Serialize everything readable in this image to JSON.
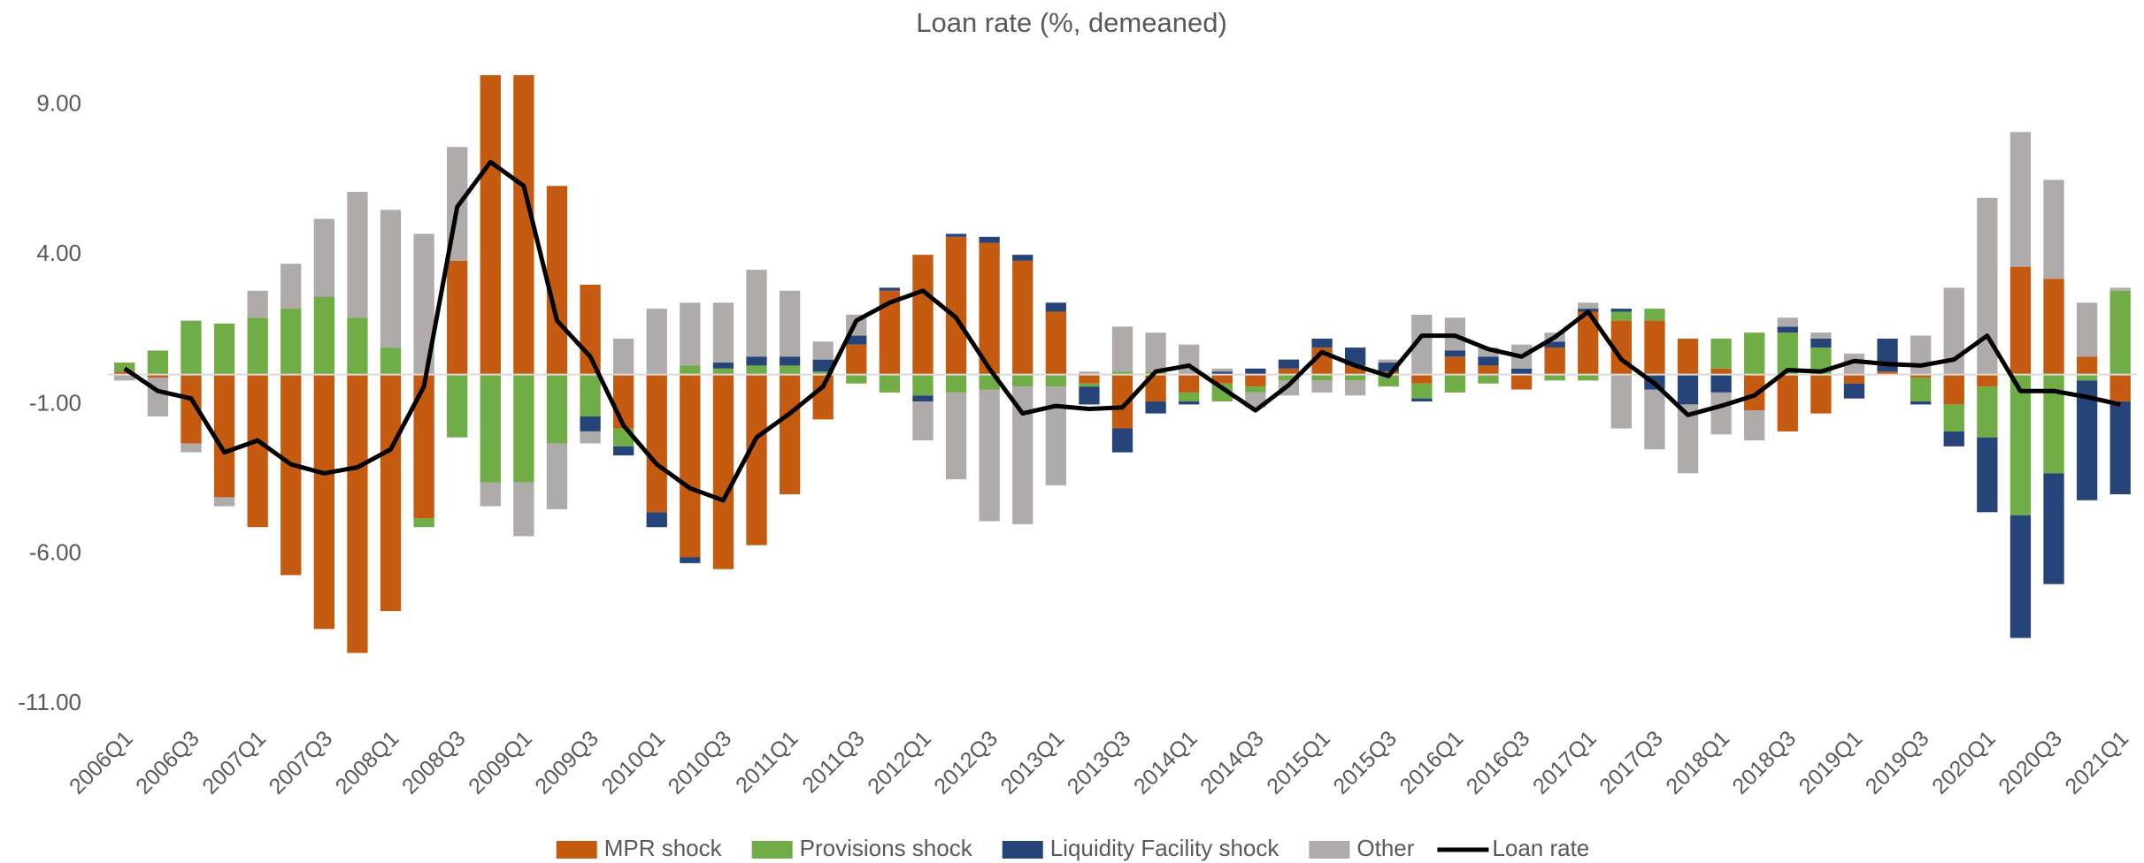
{
  "chart_data": {
    "type": "bar",
    "stacked": true,
    "title": "Loan rate (%, demeaned)",
    "categories": [
      "2006Q1",
      null,
      "2006Q3",
      null,
      "2007Q1",
      null,
      "2007Q3",
      null,
      "2008Q1",
      null,
      "2008Q3",
      null,
      "2009Q1",
      null,
      "2009Q3",
      null,
      "2010Q1",
      null,
      "2010Q3",
      null,
      "2011Q1",
      null,
      "2011Q3",
      null,
      "2012Q1",
      null,
      "2012Q3",
      null,
      "2013Q1",
      null,
      "2013Q3",
      null,
      "2014Q1",
      null,
      "2014Q3",
      null,
      "2015Q1",
      null,
      "2015Q3",
      null,
      "2016Q1",
      null,
      "2016Q3",
      null,
      "2017Q1",
      null,
      "2017Q3",
      null,
      "2018Q1",
      null,
      "2018Q3",
      null,
      "2019Q1",
      null,
      "2019Q3",
      null,
      "2020Q1",
      null,
      "2020Q3",
      null,
      "2021Q1"
    ],
    "series": [
      {
        "name": "MPR shock",
        "type": "bar",
        "color": "#c55a11",
        "values": [
          0.1,
          -0.1,
          -2.3,
          -4.1,
          -5.1,
          -6.7,
          -8.5,
          -9.3,
          -7.9,
          -4.8,
          3.8,
          10,
          10,
          6.3,
          3.0,
          -1.8,
          -4.6,
          -6.1,
          -6.5,
          -5.7,
          -4.0,
          -1.5,
          1.0,
          2.8,
          4.0,
          4.6,
          4.4,
          3.8,
          2.1,
          -0.3,
          -1.8,
          -0.9,
          -0.6,
          -0.3,
          -0.4,
          0.2,
          0.9,
          0.3,
          0.1,
          -0.3,
          0.6,
          0.3,
          -0.5,
          0.9,
          2.1,
          1.8,
          1.8,
          1.2,
          0.2,
          -1.2,
          -1.9,
          -1.3,
          -0.3,
          0.1,
          -0.1,
          -1.0,
          -0.4,
          3.6,
          3.2,
          0.6,
          -0.9
        ]
      },
      {
        "name": "Provisions shock",
        "type": "bar",
        "color": "#70ad47",
        "values": [
          0.3,
          0.8,
          1.8,
          1.7,
          1.9,
          2.2,
          2.6,
          1.9,
          0.9,
          -0.3,
          -2.1,
          -3.6,
          -3.6,
          -2.3,
          -1.4,
          -0.6,
          0,
          0.3,
          0.2,
          0.3,
          0.3,
          0.1,
          -0.3,
          -0.6,
          -0.7,
          -0.6,
          -0.5,
          -0.4,
          -0.4,
          -0.1,
          0.1,
          0.1,
          -0.3,
          -0.6,
          -0.2,
          -0.2,
          -0.2,
          -0.2,
          -0.4,
          -0.5,
          -0.6,
          -0.3,
          0,
          -0.2,
          -0.2,
          0.3,
          0.4,
          0,
          1.0,
          1.4,
          1.4,
          0.9,
          0,
          0,
          -0.8,
          -0.9,
          -1.7,
          -4.7,
          -3.3,
          -0.2,
          2.8
        ]
      },
      {
        "name": "Liquidity Facility shock",
        "type": "bar",
        "color": "#264478",
        "values": [
          0,
          0,
          0,
          0,
          0,
          0,
          0,
          0,
          0,
          0,
          0,
          0,
          0,
          0,
          -0.5,
          -0.3,
          -0.5,
          -0.2,
          0.2,
          0.3,
          0.3,
          0.4,
          0.3,
          0.1,
          -0.2,
          0.1,
          0.2,
          0.2,
          0.3,
          -0.6,
          -0.8,
          -0.4,
          -0.1,
          0.1,
          0.2,
          0.3,
          0.3,
          0.6,
          0.3,
          -0.1,
          0.2,
          0.3,
          0.2,
          0.2,
          0.1,
          0.1,
          -0.5,
          -1.0,
          -0.6,
          0,
          0.2,
          0.3,
          -0.5,
          1.1,
          -0.1,
          -0.5,
          -2.5,
          -4.1,
          -3.7,
          -4.0,
          -3.1
        ]
      },
      {
        "name": "Other",
        "type": "bar",
        "color": "#afabab",
        "values": [
          -0.2,
          -1.3,
          -0.3,
          -0.3,
          0.9,
          1.5,
          2.6,
          4.2,
          4.6,
          4.7,
          3.8,
          -0.8,
          -1.8,
          -2.2,
          -0.4,
          1.2,
          2.2,
          2.1,
          2.0,
          2.9,
          2.2,
          0.6,
          0.7,
          0,
          -1.3,
          -2.9,
          -4.4,
          -4.6,
          -3.3,
          0.1,
          1.5,
          1.3,
          1.0,
          0.1,
          -0.5,
          -0.5,
          -0.4,
          -0.5,
          0.1,
          2.0,
          1.1,
          0.3,
          0.8,
          0.3,
          0.2,
          -1.8,
          -2.0,
          -2.3,
          -1.4,
          -1.0,
          0.3,
          0.2,
          0.7,
          0,
          1.3,
          2.9,
          5.9,
          4.5,
          3.3,
          1.8,
          0.1
        ]
      },
      {
        "name": "Loan rate",
        "type": "line",
        "color": "#000000",
        "values": [
          0.2,
          -0.55,
          -0.8,
          -2.6,
          -2.2,
          -3.0,
          -3.3,
          -3.1,
          -2.5,
          -0.4,
          5.6,
          7.1,
          6.3,
          1.8,
          0.6,
          -1.7,
          -3.0,
          -3.8,
          -4.2,
          -2.1,
          -1.3,
          -0.4,
          1.8,
          2.4,
          2.8,
          1.9,
          0.2,
          -1.3,
          -1.05,
          -1.15,
          -1.1,
          0.1,
          0.3,
          -0.45,
          -1.2,
          -0.35,
          0.75,
          0.3,
          -0.05,
          1.3,
          1.3,
          0.85,
          0.6,
          1.25,
          2.1,
          0.5,
          -0.3,
          -1.35,
          -1.05,
          -0.7,
          0.15,
          0.1,
          0.45,
          0.35,
          0.3,
          0.5,
          1.3,
          -0.55,
          -0.55,
          -0.75,
          -1.0
        ]
      }
    ],
    "ylim": [
      -11,
      10
    ],
    "yticks": [
      {
        "value": -11,
        "label": "-11.00"
      },
      {
        "value": -6,
        "label": "-6.00"
      },
      {
        "value": -1,
        "label": "-1.00"
      },
      {
        "value": 4,
        "label": "4.00"
      },
      {
        "value": 9,
        "label": "9.00"
      }
    ],
    "grid": false,
    "legend": "bottom"
  }
}
